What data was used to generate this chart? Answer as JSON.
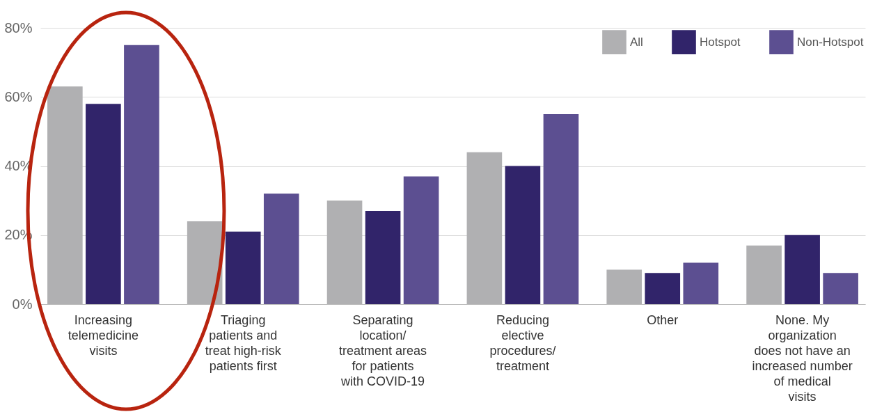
{
  "chart_data": {
    "type": "bar",
    "categories": [
      "Increasing telemedicine visits",
      "Triaging patients and treat high-risk patients first",
      "Separating location/ treatment areas for patients with COVID-19",
      "Reducing elective procedures/ treatment",
      "Other",
      "None. My organization does not have an increased number of medical visits"
    ],
    "series": [
      {
        "name": "All",
        "color": "#b0b0b2",
        "values": [
          63,
          24,
          30,
          44,
          10,
          17
        ]
      },
      {
        "name": "Hotspot",
        "color": "#31246a",
        "values": [
          58,
          21,
          27,
          40,
          9,
          20
        ]
      },
      {
        "name": "Non-Hotspot",
        "color": "#5c4f91",
        "values": [
          75,
          32,
          37,
          55,
          12,
          9
        ]
      }
    ],
    "ylim": [
      0,
      80
    ],
    "yticks": [
      {
        "value": 0,
        "label": "0%"
      },
      {
        "value": 20,
        "label": "20%"
      },
      {
        "value": 40,
        "label": "40%"
      },
      {
        "value": 60,
        "label": "60%"
      },
      {
        "value": 80,
        "label": "80%"
      }
    ],
    "grid": "y",
    "legend": "top right"
  }
}
